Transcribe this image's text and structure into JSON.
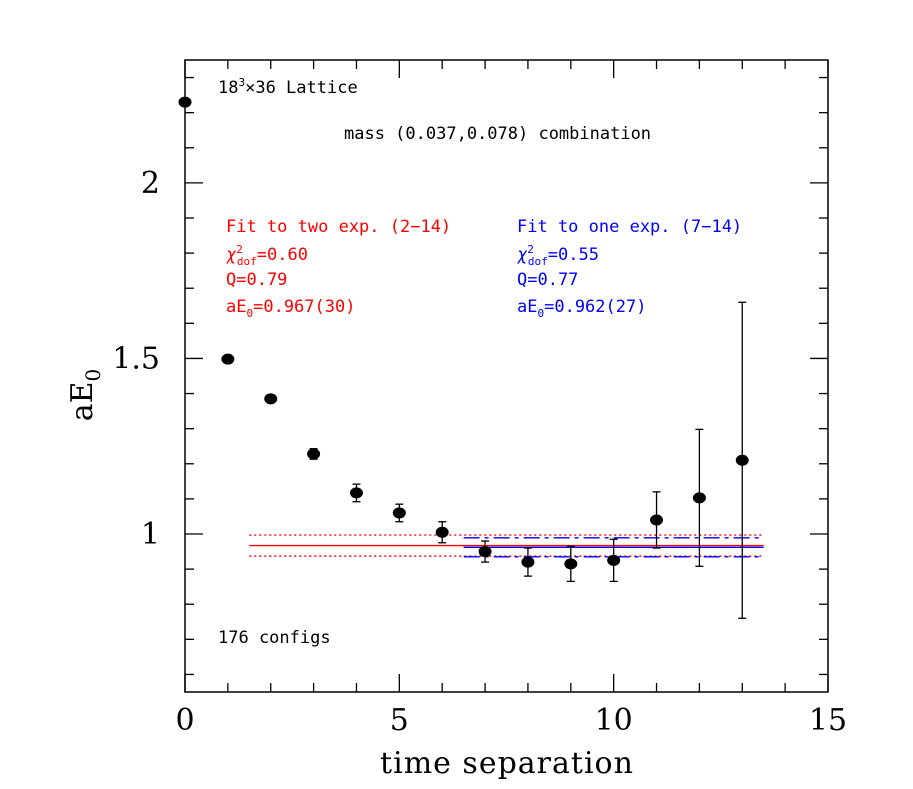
{
  "chart_data": {
    "type": "scatter",
    "xlabel": "time separation",
    "ylabel_main": "aE",
    "ylabel_sub": "0",
    "xlim": [
      0,
      15
    ],
    "ylim": [
      0.55,
      2.35
    ],
    "xticks": [
      0,
      5,
      10,
      15
    ],
    "xtick_labels": [
      "0",
      "5",
      "10",
      "15"
    ],
    "yticks": [
      1,
      1.5,
      2
    ],
    "ytick_labels": [
      "1",
      "1.5",
      "2"
    ],
    "annotations": {
      "lattice_base": "18",
      "lattice_sup": "3",
      "lattice_rest": "×36 Lattice",
      "mass": "mass (0.037,0.078) combination",
      "configs": "176 configs"
    },
    "series": [
      {
        "color": "#000000",
        "x": [
          0,
          1,
          2,
          3,
          4,
          5,
          6,
          7,
          8,
          9,
          10,
          11,
          12,
          13
        ],
        "y": [
          2.23,
          1.498,
          1.385,
          1.228,
          1.117,
          1.06,
          1.005,
          0.95,
          0.92,
          0.915,
          0.925,
          1.04,
          1.103,
          1.21
        ],
        "err": [
          0.005,
          0.008,
          0.01,
          0.015,
          0.025,
          0.025,
          0.03,
          0.03,
          0.04,
          0.05,
          0.06,
          0.08,
          0.195,
          0.45
        ]
      }
    ],
    "fits": [
      {
        "color": "#ff0000",
        "range": [
          2,
          14
        ],
        "line_x": [
          1.5,
          13.5
        ],
        "central": 0.967,
        "error": 0.03,
        "title": "Fit to two exp. (2−14)",
        "chi_label": "χ",
        "chi_sup": "2",
        "chi_sub": "dof",
        "chi_value": "=0.60",
        "q_text": "Q=0.79",
        "ae_main": "aE",
        "ae_sub": "0",
        "ae_value": "=0.967(30)"
      },
      {
        "color": "#0000ff",
        "range": [
          7,
          14
        ],
        "line_x": [
          6.5,
          13.5
        ],
        "central": 0.962,
        "error": 0.027,
        "title": "Fit to one exp. (7−14)",
        "chi_label": "χ",
        "chi_sup": "2",
        "chi_sub": "dof",
        "chi_value": "=0.55",
        "q_text": "Q=0.77",
        "ae_main": "aE",
        "ae_sub": "0",
        "ae_value": "=0.962(27)"
      }
    ]
  }
}
